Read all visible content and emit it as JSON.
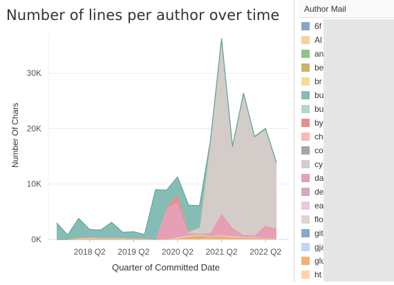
{
  "title": "Number of lines per author over time",
  "legend_header": "Author Mail",
  "legend": [
    {
      "label": "6f",
      "color": "#8aa4c4"
    },
    {
      "label": "Al",
      "color": "#f7cfa6"
    },
    {
      "label": "an",
      "color": "#93c18a"
    },
    {
      "label": "be",
      "color": "#c9b46b"
    },
    {
      "label": "br",
      "color": "#f3dc94"
    },
    {
      "label": "bu",
      "color": "#86bcb6"
    },
    {
      "label": "bu",
      "color": "#b1d6cf"
    },
    {
      "label": "by",
      "color": "#e88d8b"
    },
    {
      "label": "ch",
      "color": "#f9bab7"
    },
    {
      "label": "co",
      "color": "#aaa5a4"
    },
    {
      "label": "cy",
      "color": "#d4ccc9"
    },
    {
      "label": "da",
      "color": "#e5a0b8"
    },
    {
      "label": "de",
      "color": "#d0a8c6"
    },
    {
      "label": "ea",
      "color": "#e9c8e0"
    },
    {
      "label": "flo",
      "color": "#e6d3cd"
    },
    {
      "label": "git",
      "color": "#8ba7c9"
    },
    {
      "label": "gja",
      "color": "#bed7ef"
    },
    {
      "label": "glu",
      "color": "#f2b374"
    },
    {
      "label": "ht",
      "color": "#fbd5b3"
    }
  ],
  "chart_data": {
    "type": "area",
    "stacked": true,
    "title": "Number of lines per author over time",
    "xlabel": "Quarter of Committed Date",
    "ylabel": "Number Of Chars",
    "ylim": [
      0,
      37000
    ],
    "y_ticks": [
      0,
      10000,
      20000,
      30000
    ],
    "y_tick_labels": [
      "0K",
      "10K",
      "20K",
      "30K"
    ],
    "x_tick_labels": [
      "2018 Q2",
      "2019 Q2",
      "2020 Q2",
      "2021 Q2",
      "2022 Q2"
    ],
    "x_tick_positions": [
      3,
      7,
      11,
      15,
      19
    ],
    "grid": true,
    "x": [
      "2017 Q3",
      "2017 Q4",
      "2018 Q1",
      "2018 Q2",
      "2018 Q3",
      "2018 Q4",
      "2019 Q1",
      "2019 Q2",
      "2019 Q3",
      "2019 Q4",
      "2020 Q1",
      "2020 Q2",
      "2020 Q3",
      "2020 Q4",
      "2021 Q1",
      "2021 Q2",
      "2021 Q3",
      "2021 Q4",
      "2022 Q1",
      "2022 Q2",
      "2022 Q3"
    ],
    "series": [
      {
        "color": "#f2b374",
        "values": [
          0,
          0,
          0,
          0,
          0,
          0,
          0,
          0,
          0,
          0,
          0,
          100,
          200,
          300,
          300,
          300,
          200,
          150,
          100,
          100,
          50
        ]
      },
      {
        "color": "#c9b46b",
        "values": [
          0,
          0,
          0,
          0,
          0,
          0,
          0,
          0,
          0,
          0,
          0,
          0,
          200,
          300,
          100,
          200,
          100,
          100,
          100,
          50,
          50
        ]
      },
      {
        "color": "#f9bab7",
        "values": [
          0,
          0,
          300,
          400,
          300,
          300,
          300,
          200,
          200,
          0,
          0,
          300,
          300,
          300,
          200,
          300,
          300,
          200,
          200,
          100,
          100
        ]
      },
      {
        "color": "#e5a0b8",
        "values": [
          0,
          0,
          0,
          0,
          0,
          0,
          0,
          0,
          0,
          0,
          5600,
          6300,
          400,
          100,
          500,
          3800,
          1400,
          300,
          300,
          2200,
          1700
        ]
      },
      {
        "color": "#e88d8b",
        "values": [
          0,
          0,
          0,
          0,
          0,
          0,
          0,
          0,
          0,
          0,
          100,
          1600,
          0,
          0,
          0,
          0,
          0,
          0,
          0,
          0,
          0
        ]
      },
      {
        "color": "#d4ccc9",
        "values": [
          0,
          0,
          0,
          0,
          0,
          0,
          0,
          0,
          0,
          0,
          0,
          0,
          300,
          1200,
          16800,
          31300,
          14600,
          25400,
          17700,
          17400,
          11800
        ]
      },
      {
        "color": "#93c18a",
        "values": [
          0,
          0,
          0,
          0,
          0,
          0,
          0,
          0,
          0,
          0,
          0,
          0,
          0,
          0,
          0,
          300,
          100,
          200,
          100,
          100,
          100
        ]
      },
      {
        "color": "#86bcb6",
        "values": [
          3000,
          800,
          3500,
          1400,
          1400,
          2800,
          1000,
          1200,
          700,
          9000,
          3200,
          3000,
          4800,
          3900,
          100,
          100,
          100,
          100,
          100,
          100,
          100
        ]
      }
    ]
  }
}
